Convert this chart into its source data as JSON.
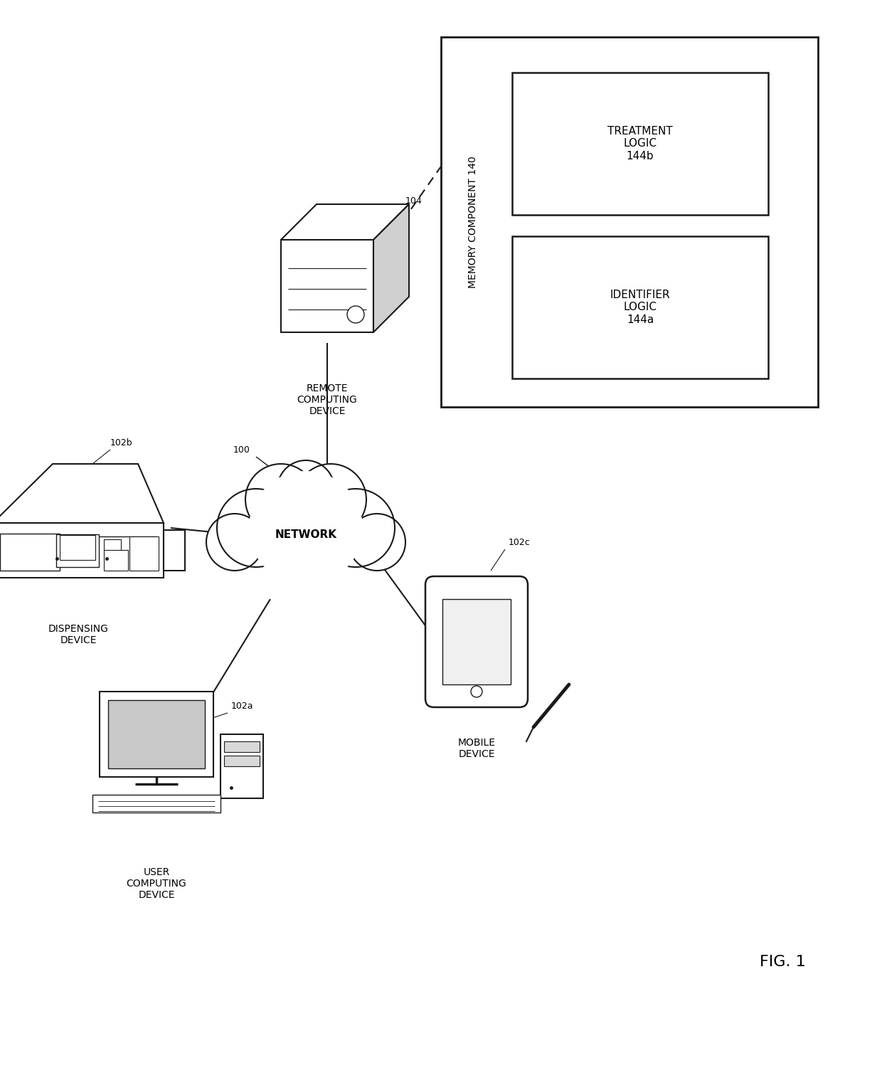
{
  "title": "FIG. 1",
  "bg_color": "#ffffff",
  "line_color": "#1a1a1a",
  "network_label": "NETWORK",
  "network_ref": "100",
  "memory_label": "MEMORY COMPONENT 140",
  "treatment_label": "TREATMENT\nLOGIC\n144b",
  "identifier_label": "IDENTIFIER\nLOGIC\n144a",
  "remote_label": "REMOTE\nCOMPUTING\nDEVICE",
  "remote_ref": "104",
  "dispensing_label": "DISPENSING\nDEVICE",
  "dispensing_ref": "102b",
  "mobile_label": "MOBILE\nDEVICE",
  "mobile_ref": "102c",
  "user_label": "USER\nCOMPUTING\nDEVICE",
  "user_ref": "102a",
  "font_size_label": 10,
  "font_size_ref": 9,
  "font_size_title": 16,
  "font_family": "DejaVu Sans"
}
